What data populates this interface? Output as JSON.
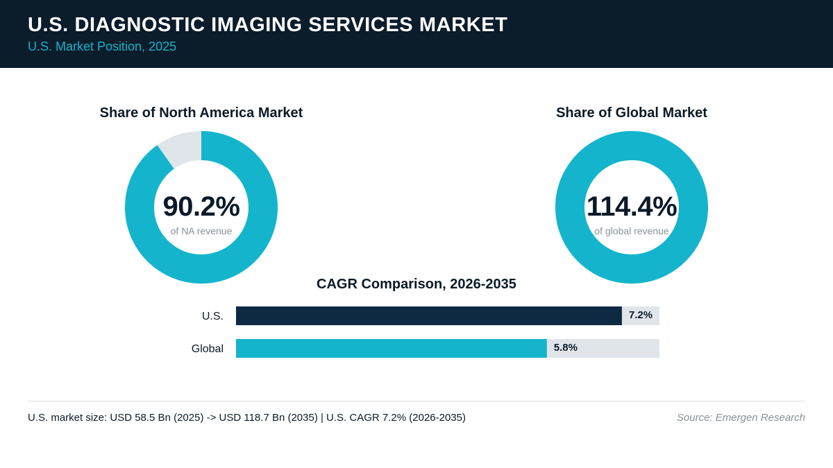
{
  "header": {
    "title": "U.S. DIAGNOSTIC IMAGING SERVICES MARKET",
    "subtitle": "U.S. Market Position, 2025"
  },
  "colors": {
    "header_bg": "#0b1c2b",
    "accent": "#14b5cc",
    "navy": "#0e2a42",
    "track": "#e0e5ea"
  },
  "chart_data": [
    {
      "type": "pie",
      "title": "Share of North America Market",
      "value": 90.2,
      "value_label": "90.2%",
      "caption": "of NA revenue",
      "colors": [
        "#14b5cc",
        "#e0e5ea"
      ]
    },
    {
      "type": "pie",
      "title": "Share of Global Market",
      "value": 114.4,
      "value_label": "114.4%",
      "caption": "of global revenue",
      "colors": [
        "#14b5cc",
        "#e0e5ea"
      ]
    },
    {
      "type": "bar",
      "orientation": "horizontal",
      "title": "CAGR Comparison, 2026-2035",
      "categories": [
        "U.S.",
        "Global"
      ],
      "values": [
        7.2,
        5.8
      ],
      "value_labels": [
        "7.2%",
        "5.8%"
      ],
      "xlim": [
        0,
        7.9
      ],
      "colors": [
        "#0e2a42",
        "#14b5cc"
      ]
    }
  ],
  "footer": {
    "note": "U.S. market size: USD 58.5 Bn (2025) -> USD 118.7 Bn (2035)  |  U.S. CAGR 7.2% (2026-2035)",
    "source": "Source: Emergen Research"
  }
}
